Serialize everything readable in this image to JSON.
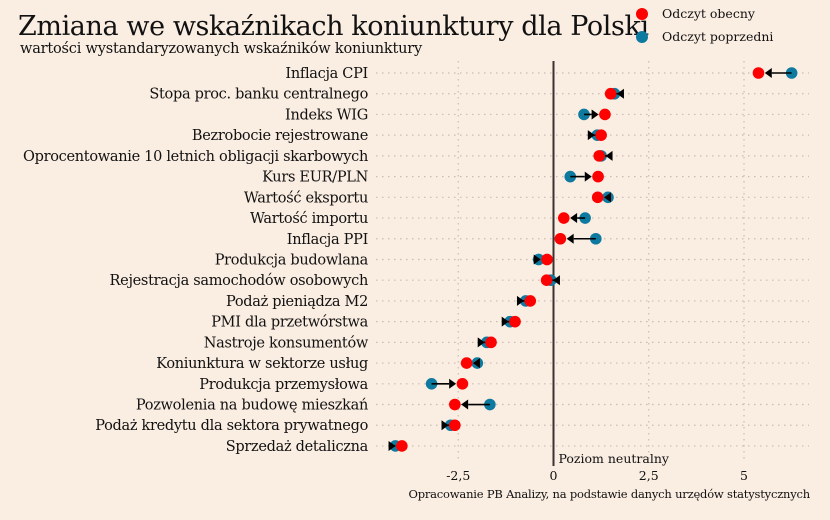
{
  "chart_data": {
    "type": "dumbbell",
    "title": "Zmiana we wskaźnikach koniunktury dla Polski",
    "subtitle": "wartości wystandaryzowanych wskaźników koniunktury",
    "source": "Opracowanie PB Analizy, na podstawie danych urzędów statystycznych",
    "neutral_label": "Poziom neutralny",
    "xlim": [
      -4.6,
      6.7
    ],
    "xticks": [
      -2.5,
      0,
      2.5,
      5
    ],
    "xtick_labels": [
      "-2,5",
      "0",
      "2,5",
      "5"
    ],
    "grid": true,
    "legend_position": "top-right",
    "colors": {
      "current": "#FF0000",
      "previous": "#0F7AA0",
      "background": "#FAEDE2"
    },
    "series": [
      {
        "key": "current",
        "name": "Odczyt obecny"
      },
      {
        "key": "previous",
        "name": "Odczyt poprzedni"
      }
    ],
    "categories": [
      "Inflacja CPI",
      "Stopa proc. banku centralnego",
      "Indeks WIG",
      "Bezrobocie rejestrowane",
      "Oprocentowanie 10 letnich obligacji skarbowych",
      "Kurs EUR/PLN",
      "Wartość eksportu",
      "Wartość importu",
      "Inflacja PPI",
      "Produkcja budowlana",
      "Rejestracja samochodów osobowych",
      "Podaż pieniądza M2",
      "PMI dla przetwórstwa",
      "Nastroje konsumentów",
      "Koniunktura w sektorze usług",
      "Produkcja przemysłowa",
      "Pozwolenia na budowę mieszkań",
      "Podaż kredytu dla sektora prywatnego",
      "Sprzedaż detaliczna"
    ],
    "current": [
      5.38,
      1.5,
      1.35,
      1.25,
      1.2,
      1.17,
      1.16,
      0.27,
      0.18,
      -0.17,
      -0.18,
      -0.61,
      -1.01,
      -1.64,
      -2.28,
      -2.39,
      -2.59,
      -2.59,
      -3.98
    ],
    "previous": [
      6.25,
      1.6,
      0.8,
      1.15,
      1.25,
      0.44,
      1.43,
      0.83,
      1.11,
      -0.39,
      -0.07,
      -0.73,
      -1.14,
      -1.75,
      -2.0,
      -3.2,
      -1.67,
      -2.7,
      -4.15
    ]
  }
}
